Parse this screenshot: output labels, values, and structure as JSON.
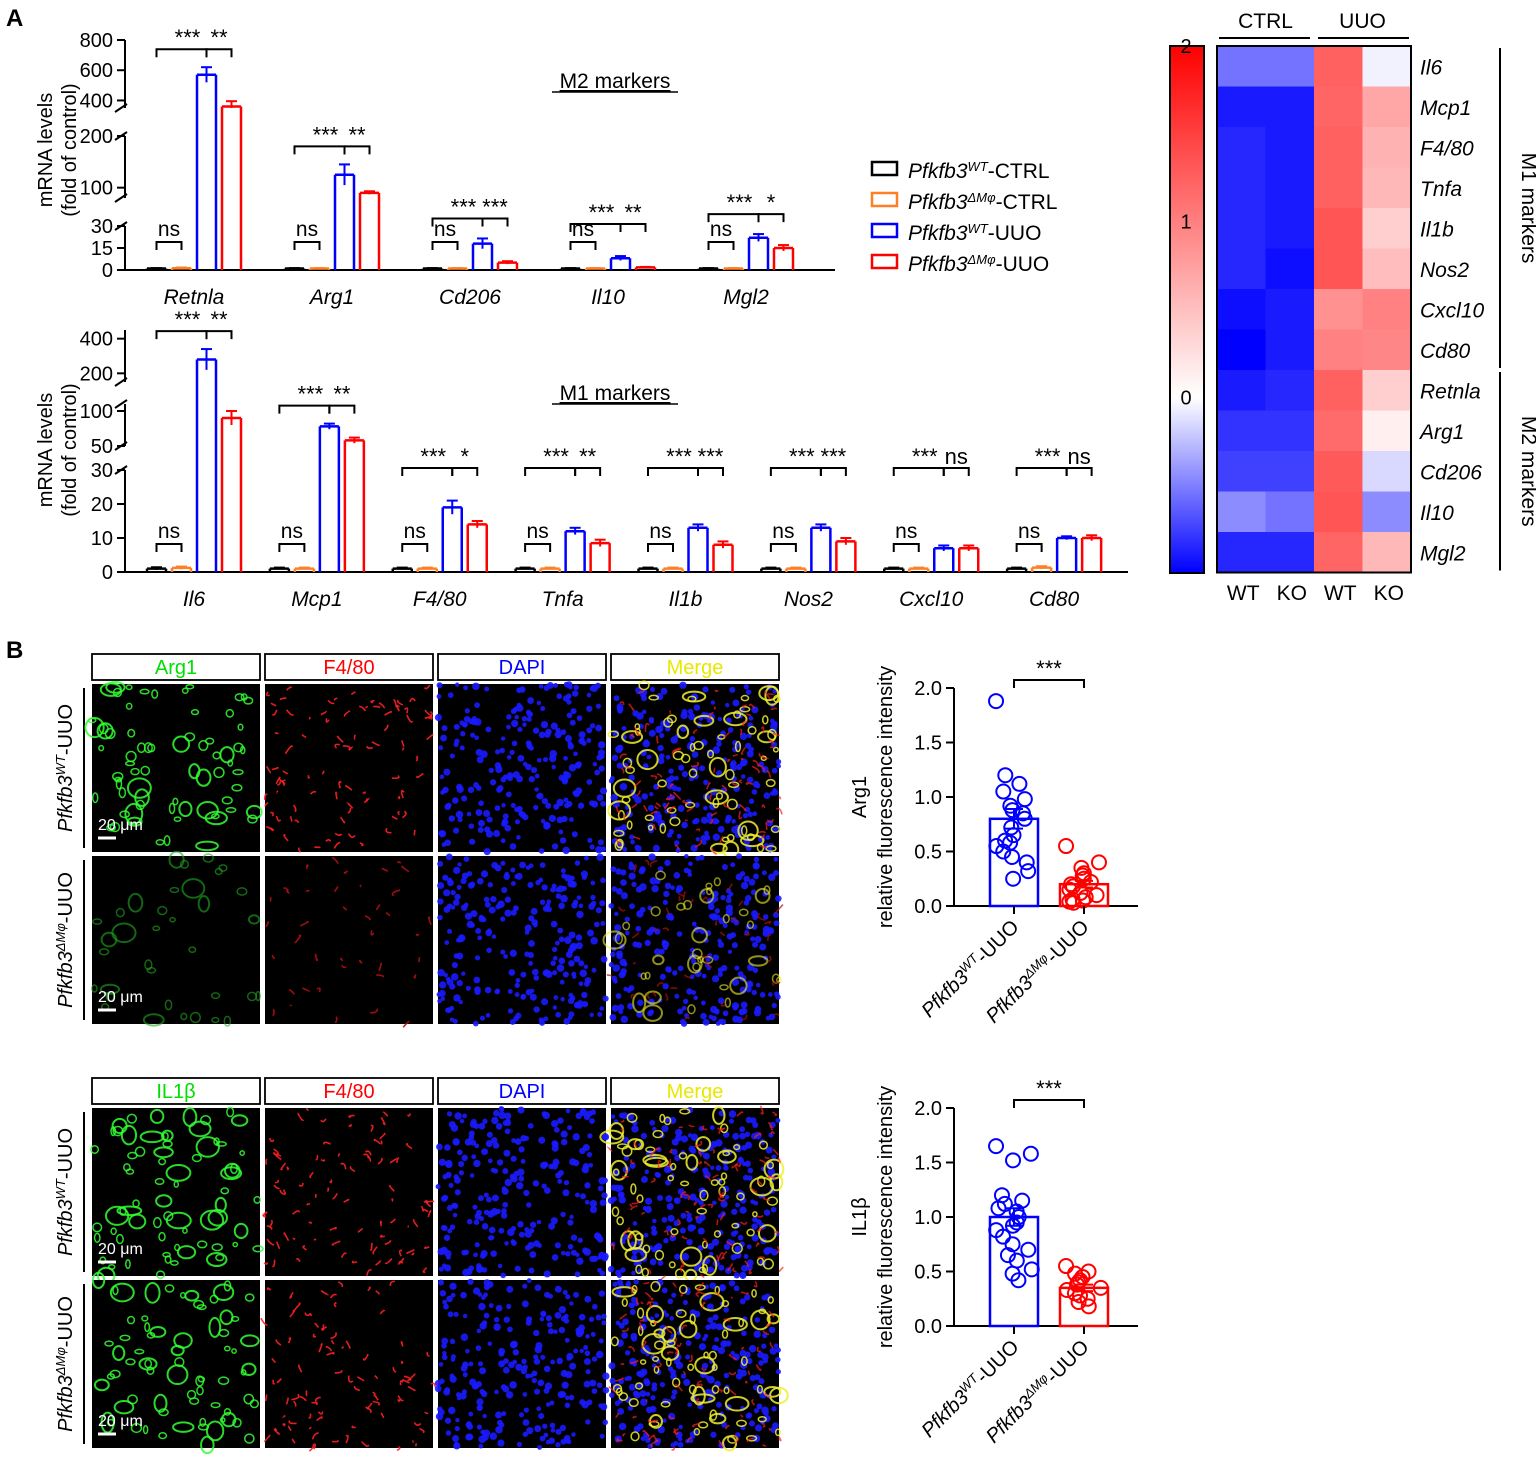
{
  "panels": {
    "a": "A",
    "b": "B"
  },
  "colors": {
    "ctrl_wt": "#000000",
    "ctrl_ko": "#ff7f27",
    "uuo_wt": "#0000ff",
    "uuo_ko": "#ff0000"
  },
  "legend": {
    "entries": [
      {
        "base": "Pfkfb3",
        "sup": "WT",
        "suffix": "-CTRL",
        "color": "#000000"
      },
      {
        "base": "Pfkfb3",
        "sup": "ΔMφ",
        "suffix": "-CTRL",
        "color": "#ff7f27"
      },
      {
        "base": "Pfkfb3",
        "sup": "WT",
        "suffix": "-UUO",
        "color": "#0000ff"
      },
      {
        "base": "Pfkfb3",
        "sup": "ΔMφ",
        "suffix": "-UUO",
        "color": "#ff0000"
      }
    ]
  },
  "chart_data": [
    {
      "type": "bar",
      "title": "M2 markers",
      "ylabel": [
        "mRNA levels",
        "(fold of control)"
      ],
      "yaxis_segments": [
        {
          "range": [
            0,
            30
          ],
          "ticks": [
            "0",
            "15",
            "30"
          ]
        },
        {
          "range": [
            80,
            200
          ],
          "ticks": [
            "100",
            "200"
          ]
        },
        {
          "range": [
            350,
            800
          ],
          "ticks": [
            "400",
            "600",
            "800"
          ]
        }
      ],
      "categories": [
        "Retnla",
        "Arg1",
        "Cd206",
        "Il10",
        "Mgl2"
      ],
      "series": [
        {
          "name": "Pfkfb3WT-CTRL",
          "values": [
            1,
            1,
            1,
            1,
            1
          ],
          "errors": [
            0.3,
            0.3,
            0.3,
            0.3,
            0.3
          ]
        },
        {
          "name": "Pfkfb3ΔMφ-CTRL",
          "values": [
            1.2,
            1,
            1,
            1,
            1
          ],
          "errors": [
            0.5,
            0.3,
            0.3,
            0.3,
            0.3
          ]
        },
        {
          "name": "Pfkfb3WT-UUO",
          "values": [
            570,
            125,
            18,
            8,
            22
          ],
          "errors": [
            50,
            20,
            3.5,
            1.5,
            2.5
          ]
        },
        {
          "name": "Pfkfb3ΔMφ-UUO",
          "values": [
            360,
            90,
            5,
            1.8,
            15
          ],
          "errors": [
            35,
            3,
            1,
            0.3,
            2
          ]
        }
      ],
      "significance": [
        [
          "***",
          "**"
        ],
        [
          "***",
          "**"
        ],
        [
          "***",
          "***"
        ],
        [
          "***",
          "**"
        ],
        [
          "***",
          "*"
        ]
      ],
      "ctrl_sig": "ns"
    },
    {
      "type": "bar",
      "title": "M1 markers",
      "ylabel": [
        "mRNA levels",
        "(fold of control)"
      ],
      "yaxis_segments": [
        {
          "range": [
            0,
            30
          ],
          "ticks": [
            "0",
            "10",
            "20",
            "30"
          ]
        },
        {
          "range": [
            50,
            110
          ],
          "ticks": [
            "50",
            "100"
          ]
        },
        {
          "range": [
            150,
            450
          ],
          "ticks": [
            "200",
            "400"
          ]
        }
      ],
      "categories": [
        "Il6",
        "Mcp1",
        "F4/80",
        "Tnfa",
        "Il1b",
        "Nos2",
        "Cxcl10",
        "Cd80"
      ],
      "series": [
        {
          "name": "Pfkfb3WT-CTRL",
          "values": [
            1,
            1,
            1,
            1,
            1,
            1,
            1,
            1
          ],
          "errors": [
            0.4,
            0.3,
            0.3,
            0.3,
            0.3,
            0.3,
            0.3,
            0.3
          ]
        },
        {
          "name": "Pfkfb3ΔMφ-CTRL",
          "values": [
            1.2,
            1,
            1,
            1,
            1,
            1,
            1,
            1.3
          ],
          "errors": [
            0.4,
            0.3,
            0.3,
            0.3,
            0.3,
            0.3,
            0.3,
            0.4
          ]
        },
        {
          "name": "Pfkfb3WT-UUO",
          "values": [
            280,
            78,
            19,
            12,
            13,
            13,
            7,
            10
          ],
          "errors": [
            60,
            4,
            2,
            1,
            1,
            1,
            0.8,
            0.5
          ]
        },
        {
          "name": "Pfkfb3ΔMφ-UUO",
          "values": [
            90,
            58,
            14,
            8.5,
            8,
            9,
            7,
            10
          ],
          "errors": [
            10,
            4,
            1,
            1,
            1,
            1,
            0.8,
            0.8
          ]
        }
      ],
      "significance": [
        [
          "***",
          "**"
        ],
        [
          "***",
          "**"
        ],
        [
          "***",
          "*"
        ],
        [
          "***",
          "**"
        ],
        [
          "***",
          "***"
        ],
        [
          "***",
          "***"
        ],
        [
          "***",
          "ns"
        ],
        [
          "***",
          "ns"
        ]
      ],
      "ctrl_sig": "ns"
    },
    {
      "type": "heatmap",
      "colorbar_ticks": [
        "2",
        "1",
        "0"
      ],
      "colorbar_range": [
        -1,
        2
      ],
      "group_labels": [
        "CTRL",
        "UUO"
      ],
      "columns": [
        "WT",
        "KO",
        "WT",
        "KO"
      ],
      "rows": [
        "Il6",
        "Mcp1",
        "F4/80",
        "Tnfa",
        "Il1b",
        "Nos2",
        "Cxcl10",
        "Cd80",
        "Retnla",
        "Arg1",
        "Cd206",
        "Il10",
        "Mgl2"
      ],
      "row_groups": [
        {
          "label": "M1 markers",
          "start": 0,
          "end": 7
        },
        {
          "label": "M2 markers",
          "start": 8,
          "end": 12
        }
      ],
      "values": [
        [
          -0.55,
          -0.55,
          1.45,
          -0.05
        ],
        [
          -0.9,
          -0.9,
          1.4,
          0.8
        ],
        [
          -0.85,
          -0.9,
          1.45,
          0.7
        ],
        [
          -0.85,
          -0.9,
          1.45,
          0.65
        ],
        [
          -0.85,
          -0.9,
          1.55,
          0.45
        ],
        [
          -0.85,
          -0.95,
          1.55,
          0.6
        ],
        [
          -0.95,
          -0.9,
          1.0,
          1.15
        ],
        [
          -1.0,
          -0.9,
          1.15,
          1.1
        ],
        [
          -0.9,
          -0.85,
          1.45,
          0.45
        ],
        [
          -0.8,
          -0.8,
          1.35,
          0.15
        ],
        [
          -0.75,
          -0.75,
          1.5,
          -0.15
        ],
        [
          -0.45,
          -0.55,
          1.55,
          -0.45
        ],
        [
          -0.85,
          -0.85,
          1.4,
          0.65
        ]
      ]
    },
    {
      "type": "scatter",
      "ylabel": [
        "Arg1",
        "relative fluorescence intensity"
      ],
      "ylim": [
        0,
        2
      ],
      "yticks": [
        "0.0",
        "0.5",
        "1.0",
        "1.5",
        "2.0"
      ],
      "categories": [
        {
          "base": "Pfkfb3",
          "sup": "WT",
          "suffix": "-UUO"
        },
        {
          "base": "Pfkfb3",
          "sup": "ΔMφ",
          "suffix": "-UUO"
        }
      ],
      "means": [
        0.8,
        0.2
      ],
      "sems": [
        0.09,
        0.03
      ],
      "significance": "***",
      "points": [
        [
          1.88,
          1.2,
          1.12,
          1.05,
          0.98,
          0.92,
          0.88,
          0.85,
          0.8,
          0.72,
          0.65,
          0.6,
          0.58,
          0.55,
          0.5,
          0.45,
          0.4,
          0.32,
          0.25
        ],
        [
          0.55,
          0.4,
          0.35,
          0.3,
          0.28,
          0.25,
          0.22,
          0.2,
          0.18,
          0.15,
          0.12,
          0.1,
          0.08,
          0.06,
          0.05,
          0.04,
          0.03
        ]
      ]
    },
    {
      "type": "scatter",
      "ylabel": [
        "IL1β",
        "relative fluorescence intensity"
      ],
      "ylim": [
        0,
        2
      ],
      "yticks": [
        "0.0",
        "0.5",
        "1.0",
        "1.5",
        "2.0"
      ],
      "categories": [
        {
          "base": "Pfkfb3",
          "sup": "WT",
          "suffix": "-UUO"
        },
        {
          "base": "Pfkfb3",
          "sup": "ΔMφ",
          "suffix": "-UUO"
        }
      ],
      "means": [
        1.0,
        0.35
      ],
      "sems": [
        0.08,
        0.03
      ],
      "significance": "***",
      "points": [
        [
          1.65,
          1.58,
          1.52,
          1.2,
          1.15,
          1.12,
          1.08,
          1.05,
          1.0,
          0.95,
          0.92,
          0.88,
          0.82,
          0.75,
          0.7,
          0.65,
          0.6,
          0.52,
          0.48,
          0.42
        ],
        [
          0.55,
          0.5,
          0.48,
          0.45,
          0.42,
          0.4,
          0.38,
          0.35,
          0.33,
          0.3,
          0.28,
          0.25,
          0.22,
          0.18
        ]
      ]
    }
  ],
  "micrographs": {
    "set1": {
      "headers": [
        {
          "label": "Arg1",
          "color": "#00e000"
        },
        {
          "label": "F4/80",
          "color": "#ff0000"
        },
        {
          "label": "DAPI",
          "color": "#0000ff"
        },
        {
          "label": "Merge",
          "color": "#e8e800"
        }
      ],
      "rows": [
        {
          "base": "Pfkfb3",
          "sup": "WT",
          "suffix": "-UUO"
        },
        {
          "base": "Pfkfb3",
          "sup": "ΔMφ",
          "suffix": "-UUO"
        }
      ],
      "scale_bar": "20 μm"
    },
    "set2": {
      "headers": [
        {
          "label": "IL1β",
          "color": "#00e000"
        },
        {
          "label": "F4/80",
          "color": "#ff0000"
        },
        {
          "label": "DAPI",
          "color": "#0000ff"
        },
        {
          "label": "Merge",
          "color": "#e8e800"
        }
      ],
      "rows": [
        {
          "base": "Pfkfb3",
          "sup": "WT",
          "suffix": "-UUO"
        },
        {
          "base": "Pfkfb3",
          "sup": "ΔMφ",
          "suffix": "-UUO"
        }
      ],
      "scale_bar": "20 μm"
    }
  }
}
